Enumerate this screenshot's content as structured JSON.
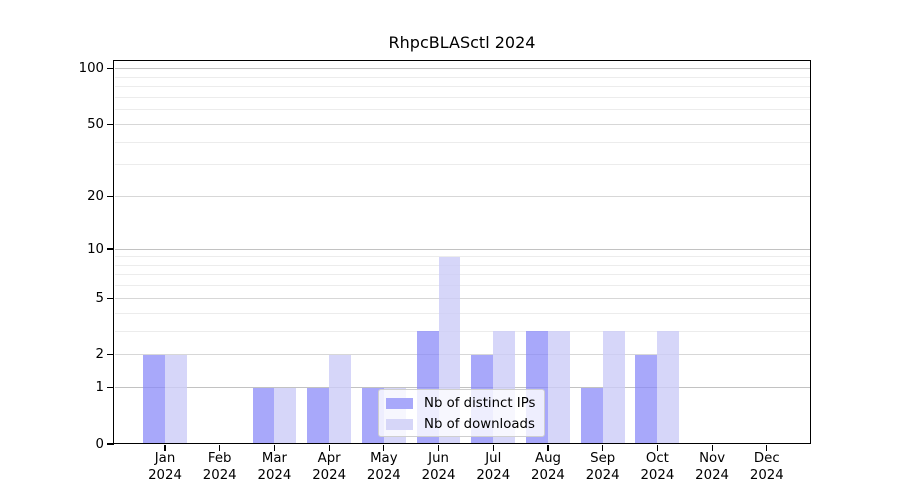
{
  "title": "RhpcBLASctl 2024",
  "chart_data": {
    "type": "bar",
    "title": "RhpcBLASctl 2024",
    "categories": [
      "Jan",
      "Feb",
      "Mar",
      "Apr",
      "May",
      "Jun",
      "Jul",
      "Aug",
      "Sep",
      "Oct",
      "Nov",
      "Dec"
    ],
    "category_year": "2024",
    "series": [
      {
        "name": "Nb of distinct IPs",
        "key": "distinct-ips",
        "color": "#a8a8fa",
        "fill": "rgba(136,136,248,0.73)",
        "values": [
          2,
          0,
          1,
          1,
          1,
          3,
          2,
          3,
          1,
          2,
          0,
          0
        ]
      },
      {
        "name": "Nb of downloads",
        "key": "downloads",
        "color": "#d6d6f8",
        "fill": "rgba(204,204,248,0.80)",
        "values": [
          2,
          0,
          1,
          2,
          1,
          9,
          3,
          3,
          3,
          3,
          0,
          0
        ]
      }
    ],
    "yscale": "log1p",
    "ylim": [
      0,
      110
    ],
    "y_ticks": [
      0,
      1,
      2,
      5,
      10,
      20,
      50,
      100
    ],
    "y_tick_labels": [
      "0",
      "1",
      "2",
      "5",
      "10",
      "20",
      "50",
      "100"
    ],
    "y_minor_gridlines": [
      3,
      4,
      6,
      7,
      8,
      9,
      30,
      40,
      60,
      70,
      80,
      90
    ],
    "grid": true,
    "legend_position": "lower center"
  },
  "colors": {
    "background": "#ffffff",
    "axis": "#000000",
    "bar_distinct_ips": "#a8a8fa",
    "bar_downloads": "#d6d6f8",
    "grid_decade": "#c2c2c2",
    "grid_major": "#d7d7d7",
    "grid_minor": "#ececec"
  }
}
